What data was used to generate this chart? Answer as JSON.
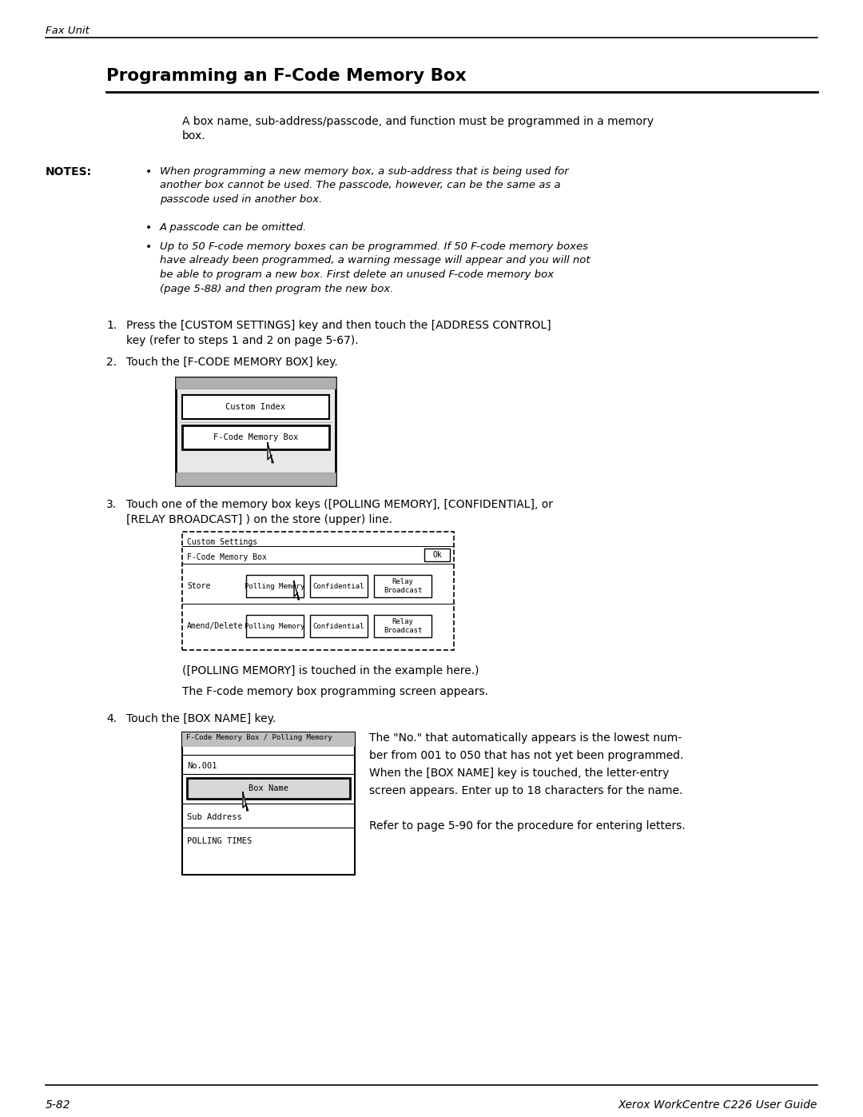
{
  "bg_color": "#ffffff",
  "header_text": "Fax Unit",
  "title_text": "Programming an F-Code Memory Box",
  "intro_text": "A box name, sub-address/passcode, and function must be programmed in a memory\nbox.",
  "notes_label": "NOTES:",
  "note1": "When programming a new memory box, a sub-address that is being used for\nanother box cannot be used. The passcode, however, can be the same as a\npasscode used in another box.",
  "note2": "A passcode can be omitted.",
  "note3": "Up to 50 F-code memory boxes can be programmed. If 50 F-code memory boxes\nhave already been programmed, a warning message will appear and you will not\nbe able to program a new box. First delete an unused F-code memory box\n(page 5-88) and then program the new box.",
  "step1": "Press the [CUSTOM SETTINGS] key and then touch the [ADDRESS CONTROL]\nkey (refer to steps 1 and 2 on page 5-67).",
  "step2": "Touch the [F-CODE MEMORY BOX] key.",
  "step3": "Touch one of the memory box keys ([POLLING MEMORY], [CONFIDENTIAL], or\n[RELAY BROADCAST] ) on the store (upper) line.",
  "step3_note1": "([POLLING MEMORY] is touched in the example here.)",
  "step3_note2": "The F-code memory box programming screen appears.",
  "step4": "Touch the [BOX NAME] key.",
  "step4_note1": "The \"No.\" that automatically appears is the lowest num-",
  "step4_note2": "ber from 001 to 050 that has not yet been programmed.",
  "step4_note3": "When the [BOX NAME] key is touched, the letter-entry",
  "step4_note4": "screen appears. Enter up to 18 characters for the name.",
  "step4_note5": "",
  "step4_note6": "Refer to page 5-90 for the procedure for entering letters.",
  "footer_left": "5-82",
  "footer_right": "Xerox WorkCentre C226 User Guide"
}
